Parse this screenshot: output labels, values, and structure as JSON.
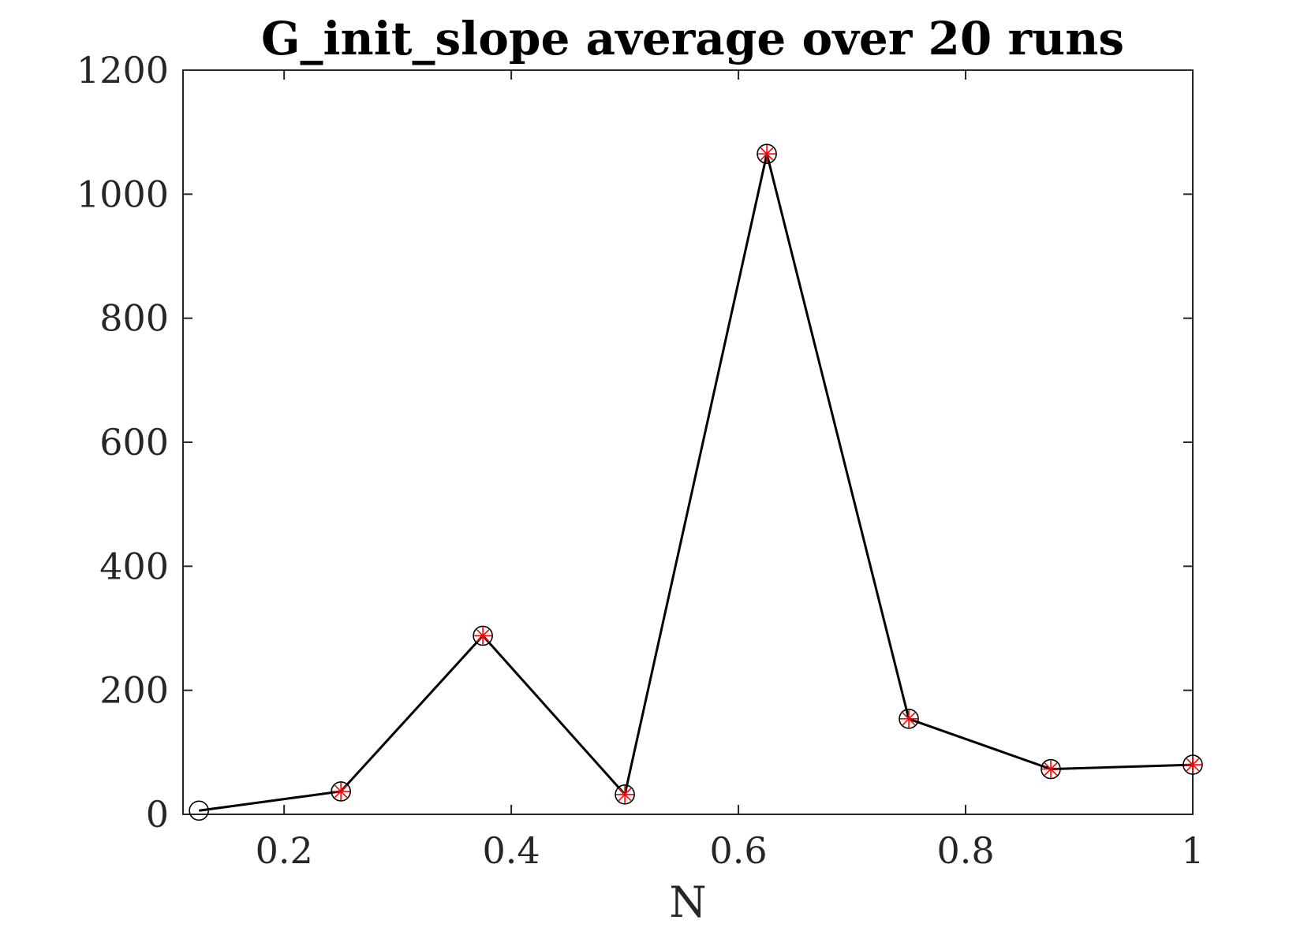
{
  "chart_data": {
    "type": "line",
    "title": "G_init_slope average over 20 runs",
    "xlabel": "N",
    "ylabel": "",
    "xlim": [
      0.111,
      1.0
    ],
    "ylim": [
      0,
      1200
    ],
    "xticks": [
      0.2,
      0.4,
      0.6,
      0.8,
      1.0
    ],
    "xtick_labels": [
      "0.2",
      "0.4",
      "0.6",
      "0.8",
      "1"
    ],
    "yticks": [
      0,
      200,
      400,
      600,
      800,
      1000,
      1200
    ],
    "ytick_labels": [
      "0",
      "200",
      "400",
      "600",
      "800",
      "1000",
      "1200"
    ],
    "grid": false,
    "legend": "none",
    "series": [
      {
        "x": [
          0.125,
          0.25,
          0.375,
          0.5,
          0.625,
          0.75,
          0.875,
          1.0
        ],
        "values": [
          6,
          37,
          288,
          32,
          1065,
          154,
          73,
          80
        ],
        "line_color": "#000000",
        "marker": "circle + red star",
        "star_markers": [
          false,
          true,
          true,
          true,
          true,
          true,
          true,
          true
        ]
      }
    ],
    "colors": {
      "line": "#000000",
      "star": "#ff0000",
      "axis": "#262626"
    }
  }
}
